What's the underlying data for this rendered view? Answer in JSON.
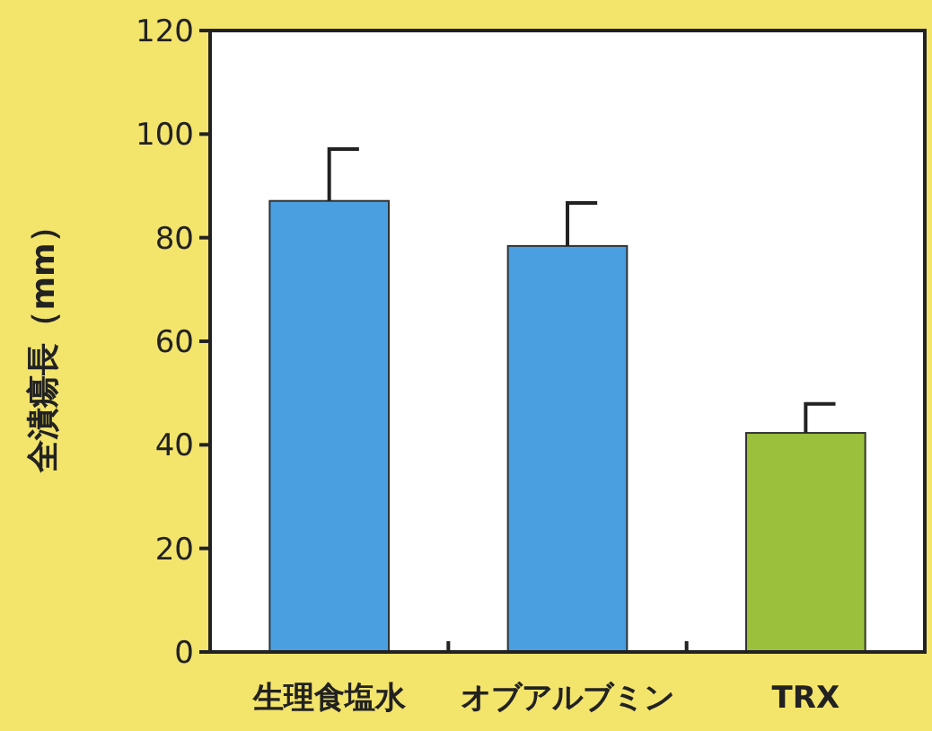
{
  "chart_data": {
    "type": "bar",
    "ylabel": "全潰瘍長（mm）",
    "categories": [
      "生理食塩水",
      "オブアルブミン",
      "TRX"
    ],
    "values": [
      87.1,
      78.4,
      42.3
    ],
    "colors": [
      "#4a9fe0",
      "#4a9fe0",
      "#9bc13c"
    ],
    "errors": [
      [
        87.1,
        97.1
      ],
      [
        78.4,
        86.7
      ],
      [
        42.3,
        47.9
      ]
    ],
    "ylim": [
      0,
      120
    ],
    "yticks": [
      0,
      20,
      40,
      60,
      80,
      100,
      120
    ],
    "grid": false
  }
}
